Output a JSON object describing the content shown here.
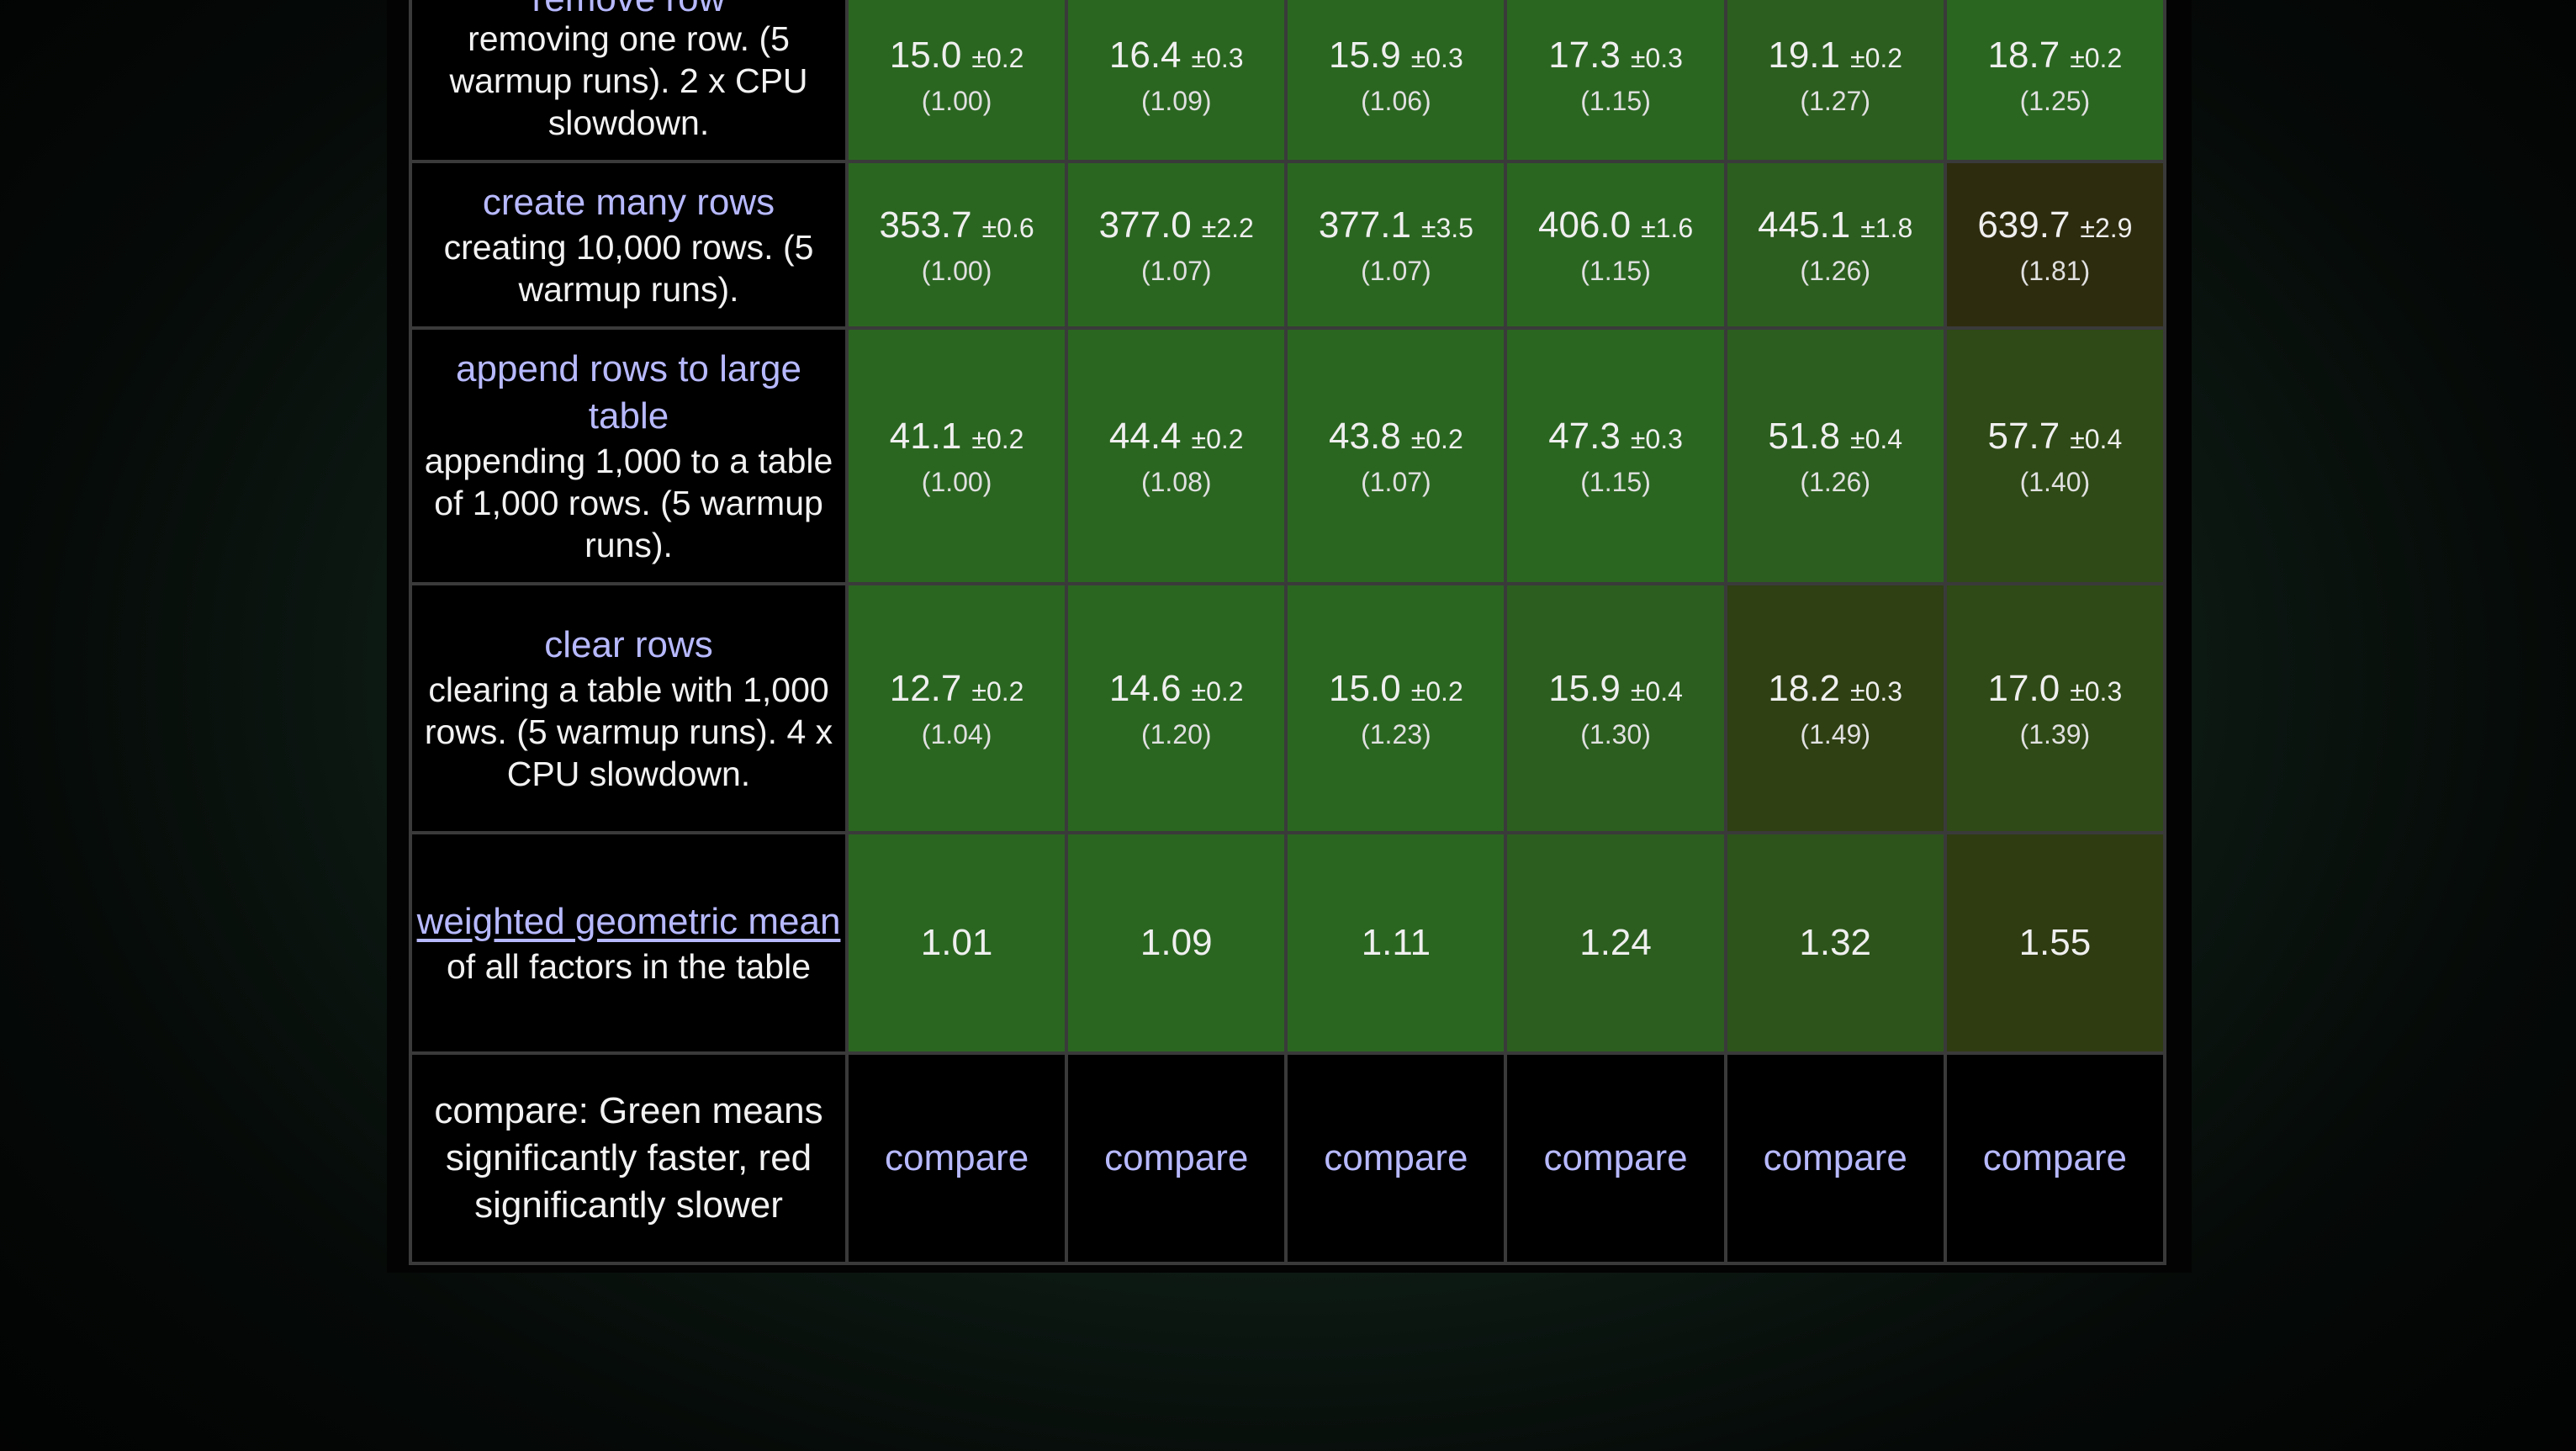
{
  "table": {
    "rows": [
      {
        "title": "remove row",
        "desc": "removing one row. (5 warmup runs). 2 x CPU slowdown.",
        "cells": [
          {
            "value": "15.0",
            "pm": "±0.2",
            "factor": "(1.00)",
            "color": "#2b6621"
          },
          {
            "value": "16.4",
            "pm": "±0.3",
            "factor": "(1.09)",
            "color": "#2b6621"
          },
          {
            "value": "15.9",
            "pm": "±0.3",
            "factor": "(1.06)",
            "color": "#2b6621"
          },
          {
            "value": "17.3",
            "pm": "±0.3",
            "factor": "(1.15)",
            "color": "#2b6621"
          },
          {
            "value": "19.1",
            "pm": "±0.2",
            "factor": "(1.27)",
            "color": "#2c5e1f"
          },
          {
            "value": "18.7",
            "pm": "±0.2",
            "factor": "(1.25)",
            "color": "#2b6621"
          }
        ]
      },
      {
        "title": "create many rows",
        "desc": "creating 10,000 rows. (5 warmup runs).",
        "cells": [
          {
            "value": "353.7",
            "pm": "±0.6",
            "factor": "(1.00)",
            "color": "#2b6621"
          },
          {
            "value": "377.0",
            "pm": "±2.2",
            "factor": "(1.07)",
            "color": "#2b6621"
          },
          {
            "value": "377.1",
            "pm": "±3.5",
            "factor": "(1.07)",
            "color": "#2b6621"
          },
          {
            "value": "406.0",
            "pm": "±1.6",
            "factor": "(1.15)",
            "color": "#2b6621"
          },
          {
            "value": "445.1",
            "pm": "±1.8",
            "factor": "(1.26)",
            "color": "#2c5e1f"
          },
          {
            "value": "639.7",
            "pm": "±2.9",
            "factor": "(1.81)",
            "color": "#2e2c0f"
          }
        ]
      },
      {
        "title": "append rows to large table",
        "desc": "appending 1,000 to a table of 1,000 rows. (5 warmup runs).",
        "cells": [
          {
            "value": "41.1",
            "pm": "±0.2",
            "factor": "(1.00)",
            "color": "#2b6621"
          },
          {
            "value": "44.4",
            "pm": "±0.2",
            "factor": "(1.08)",
            "color": "#2b6621"
          },
          {
            "value": "43.8",
            "pm": "±0.2",
            "factor": "(1.07)",
            "color": "#2b6621"
          },
          {
            "value": "47.3",
            "pm": "±0.3",
            "factor": "(1.15)",
            "color": "#2b6621"
          },
          {
            "value": "51.8",
            "pm": "±0.4",
            "factor": "(1.26)",
            "color": "#2c5e1f"
          },
          {
            "value": "57.7",
            "pm": "±0.4",
            "factor": "(1.40)",
            "color": "#2f4a16"
          }
        ]
      },
      {
        "title": "clear rows",
        "desc": "clearing a table with 1,000 rows. (5 warmup runs). 4 x CPU slowdown.",
        "cells": [
          {
            "value": "12.7",
            "pm": "±0.2",
            "factor": "(1.04)",
            "color": "#2b6621"
          },
          {
            "value": "14.6",
            "pm": "±0.2",
            "factor": "(1.20)",
            "color": "#2b6621"
          },
          {
            "value": "15.0",
            "pm": "±0.2",
            "factor": "(1.23)",
            "color": "#2b6621"
          },
          {
            "value": "15.9",
            "pm": "±0.4",
            "factor": "(1.30)",
            "color": "#2c5e1f"
          },
          {
            "value": "18.2",
            "pm": "±0.3",
            "factor": "(1.49)",
            "color": "#2f4013"
          },
          {
            "value": "17.0",
            "pm": "±0.3",
            "factor": "(1.39)",
            "color": "#2f4a16"
          }
        ]
      }
    ],
    "mean_row": {
      "link": "weighted geometric mean",
      "desc": "of all factors in the table",
      "cells": [
        {
          "value": "1.01",
          "color": "#2b6621"
        },
        {
          "value": "1.09",
          "color": "#2b6621"
        },
        {
          "value": "1.11",
          "color": "#2b6621"
        },
        {
          "value": "1.24",
          "color": "#2c5e1f"
        },
        {
          "value": "1.32",
          "color": "#2d551b"
        },
        {
          "value": "1.55",
          "color": "#2f3c12"
        }
      ]
    },
    "compare_row": {
      "label": "compare: Green means significantly faster, red significantly slower",
      "link_label": "compare",
      "count": 6
    }
  }
}
